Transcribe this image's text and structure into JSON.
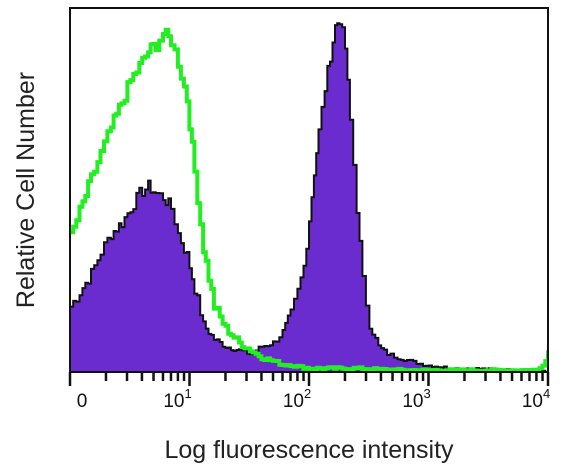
{
  "chart_data": {
    "type": "area",
    "title": "",
    "xlabel": "Log fluorescence intensity",
    "ylabel": "Relative Cell Number",
    "x_scale": "log",
    "xlim": [
      1,
      10000
    ],
    "ylim": [
      0,
      1
    ],
    "grid": false,
    "legend": "none",
    "x_ticks": [
      {
        "value": 1,
        "base": "0",
        "exp": ""
      },
      {
        "value": 10,
        "base": "10",
        "exp": "1"
      },
      {
        "value": 100,
        "base": "10",
        "exp": "2"
      },
      {
        "value": 1000,
        "base": "10",
        "exp": "3"
      },
      {
        "value": 10000,
        "base": "10",
        "exp": "4"
      }
    ],
    "series": [
      {
        "style": "filled",
        "fill_color": "#6a2ccf",
        "line_color": "#111111",
        "x": [
          1,
          1.2,
          1.5,
          1.8,
          2.2,
          2.7,
          3.2,
          3.8,
          4.5,
          5.2,
          6.0,
          7.0,
          8.0,
          9.5,
          11,
          13,
          16,
          20,
          26,
          32,
          40,
          50,
          60,
          70,
          80,
          90,
          100,
          110,
          120,
          135,
          150,
          165,
          180,
          200,
          220,
          250,
          280,
          320,
          380,
          450,
          550,
          700,
          900,
          1200,
          1600,
          2200,
          3000,
          4500,
          6500,
          9000,
          10000
        ],
        "y": [
          0.18,
          0.22,
          0.27,
          0.33,
          0.38,
          0.41,
          0.45,
          0.49,
          0.51,
          0.49,
          0.48,
          0.45,
          0.38,
          0.32,
          0.23,
          0.13,
          0.09,
          0.07,
          0.06,
          0.05,
          0.07,
          0.08,
          0.11,
          0.16,
          0.22,
          0.29,
          0.42,
          0.55,
          0.66,
          0.78,
          0.87,
          0.95,
          0.97,
          0.89,
          0.69,
          0.45,
          0.25,
          0.13,
          0.07,
          0.05,
          0.04,
          0.03,
          0.02,
          0.015,
          0.01,
          0.01,
          0.008,
          0.006,
          0.005,
          0.004,
          0.0
        ]
      },
      {
        "style": "outline",
        "line_color": "#22ee22",
        "x": [
          1,
          1.2,
          1.5,
          1.8,
          2.2,
          2.7,
          3.2,
          3.8,
          4.5,
          5.2,
          6.0,
          7.0,
          8.0,
          9.5,
          11,
          13,
          16,
          20,
          26,
          32,
          40,
          50,
          60,
          70,
          80,
          100,
          130,
          180,
          250,
          350,
          500,
          700,
          1000,
          1500,
          2000,
          3000,
          5000,
          8000,
          9500,
          10000
        ],
        "y": [
          0.37,
          0.44,
          0.53,
          0.6,
          0.67,
          0.74,
          0.8,
          0.84,
          0.88,
          0.9,
          0.93,
          0.91,
          0.85,
          0.75,
          0.55,
          0.34,
          0.18,
          0.12,
          0.08,
          0.06,
          0.04,
          0.03,
          0.02,
          0.02,
          0.015,
          0.01,
          0.01,
          0.01,
          0.01,
          0.008,
          0.006,
          0.005,
          0.005,
          0.005,
          0.005,
          0.005,
          0.005,
          0.005,
          0.03,
          0.06
        ]
      }
    ]
  }
}
